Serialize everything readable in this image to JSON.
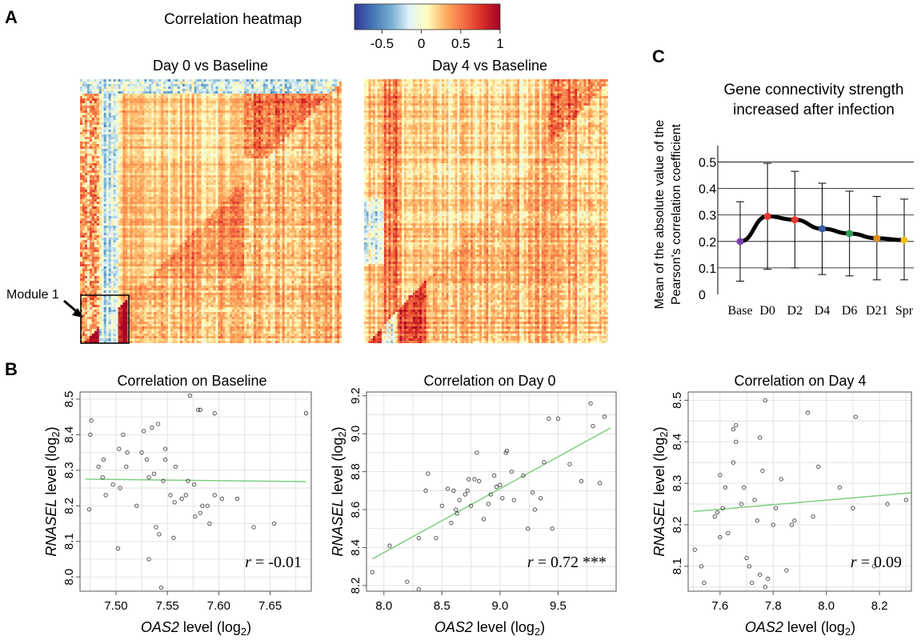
{
  "panel_labels": {
    "a": "A",
    "b": "B",
    "c": "C"
  },
  "colorbar": {
    "title": "Correlation heatmap",
    "ticks": [
      "-0.5",
      "0",
      "0.5",
      "1"
    ],
    "tick_values": [
      -0.5,
      0,
      0.5,
      1
    ],
    "range": [
      -0.85,
      1
    ],
    "colors": [
      "#313695",
      "#4575b4",
      "#74add1",
      "#e0f3f8",
      "#ffffbf",
      "#fdae61",
      "#f46d43",
      "#d73027",
      "#a50026"
    ]
  },
  "chart_data": [
    {
      "type": "heatmap",
      "title": "Day 0 vs Baseline",
      "annotation": "Module 1"
    },
    {
      "type": "heatmap",
      "title": "Day 4 vs Baseline"
    },
    {
      "type": "scatter",
      "title": "Correlation on Baseline",
      "xlabel_italic": "OAS2",
      "xlabel_rest": " level (log",
      "xlabel_sub": "2",
      "xlabel_close": ")",
      "ylabel_italic": "RNASEL",
      "ylabel_rest": " level (log",
      "ylabel_sub": "2",
      "ylabel_close": ")",
      "xlim": [
        7.465,
        7.69
      ],
      "ylim": [
        7.96,
        8.52
      ],
      "xticks": [
        7.5,
        7.55,
        7.6,
        7.65
      ],
      "xtick_labels": [
        "7.50",
        "7.55",
        "7.60",
        "7.65"
      ],
      "yticks": [
        8.0,
        8.1,
        8.2,
        8.3,
        8.4,
        8.5
      ],
      "ytick_labels": [
        "8.0",
        "8.1",
        "8.2",
        "8.3",
        "8.4",
        "8.5"
      ],
      "grid": true,
      "fit": {
        "x": [
          7.47,
          7.685
        ],
        "y": [
          8.275,
          8.268
        ]
      },
      "annotation_r": "r",
      "annotation_rest": " = -0.01",
      "points": [
        [
          7.476,
          8.44
        ],
        [
          7.475,
          8.4
        ],
        [
          7.483,
          8.31
        ],
        [
          7.488,
          8.33
        ],
        [
          7.487,
          8.28
        ],
        [
          7.49,
          8.23
        ],
        [
          7.474,
          8.19
        ],
        [
          7.497,
          8.26
        ],
        [
          7.503,
          8.36
        ],
        [
          7.507,
          8.4
        ],
        [
          7.511,
          8.35
        ],
        [
          7.51,
          8.31
        ],
        [
          7.504,
          8.25
        ],
        [
          7.502,
          8.08
        ],
        [
          7.52,
          8.2
        ],
        [
          7.525,
          8.35
        ],
        [
          7.53,
          8.33
        ],
        [
          7.527,
          8.41
        ],
        [
          7.532,
          8.28
        ],
        [
          7.535,
          8.42
        ],
        [
          7.541,
          8.43
        ],
        [
          7.537,
          8.29
        ],
        [
          7.539,
          8.14
        ],
        [
          7.542,
          8.12
        ],
        [
          7.546,
          8.27
        ],
        [
          7.548,
          8.36
        ],
        [
          7.548,
          8.33
        ],
        [
          7.553,
          8.23
        ],
        [
          7.556,
          8.11
        ],
        [
          7.557,
          8.21
        ],
        [
          7.558,
          8.31
        ],
        [
          7.564,
          8.22
        ],
        [
          7.568,
          8.23
        ],
        [
          7.572,
          8.51
        ],
        [
          7.57,
          8.27
        ],
        [
          7.576,
          8.26
        ],
        [
          7.58,
          8.47
        ],
        [
          7.582,
          8.47
        ],
        [
          7.584,
          8.2
        ],
        [
          7.582,
          8.18
        ],
        [
          7.589,
          8.2
        ],
        [
          7.591,
          8.15
        ],
        [
          7.596,
          8.46
        ],
        [
          7.596,
          8.23
        ],
        [
          7.603,
          8.22
        ],
        [
          7.618,
          8.22
        ],
        [
          7.634,
          8.14
        ],
        [
          7.654,
          8.15
        ],
        [
          7.685,
          8.46
        ],
        [
          7.532,
          8.05
        ],
        [
          7.544,
          7.97
        ],
        [
          7.577,
          8.17
        ]
      ]
    },
    {
      "type": "scatter",
      "title": "Correlation on Day 0",
      "xlabel_italic": "OAS2",
      "xlabel_rest": " level (log",
      "xlabel_sub": "2",
      "xlabel_close": ")",
      "ylabel_italic": "RNASEL",
      "ylabel_rest": " level (log",
      "ylabel_sub": "2",
      "ylabel_close": ")",
      "xlim": [
        7.85,
        10.0
      ],
      "ylim": [
        8.17,
        9.22
      ],
      "xticks": [
        8.0,
        8.5,
        9.0,
        9.5
      ],
      "xtick_labels": [
        "8.0",
        "8.5",
        "9.0",
        "9.5"
      ],
      "yticks": [
        8.2,
        8.4,
        8.6,
        8.8,
        9.0,
        9.2
      ],
      "ytick_labels": [
        "8.2",
        "8.4",
        "8.6",
        "8.8",
        "9.0",
        "9.2"
      ],
      "grid": true,
      "fit": {
        "x": [
          7.9,
          9.95
        ],
        "y": [
          8.34,
          9.03
        ]
      },
      "annotation_r": "r",
      "annotation_rest": " = 0.72 ***",
      "points": [
        [
          7.9,
          8.27
        ],
        [
          8.05,
          8.41
        ],
        [
          8.2,
          8.22
        ],
        [
          8.3,
          8.18
        ],
        [
          8.3,
          8.45
        ],
        [
          8.36,
          8.7
        ],
        [
          8.38,
          8.79
        ],
        [
          8.5,
          8.62
        ],
        [
          8.55,
          8.71
        ],
        [
          8.6,
          8.7
        ],
        [
          8.62,
          8.6
        ],
        [
          8.63,
          8.58
        ],
        [
          8.65,
          8.65
        ],
        [
          8.7,
          8.68
        ],
        [
          8.72,
          8.7
        ],
        [
          8.73,
          8.76
        ],
        [
          8.75,
          8.62
        ],
        [
          8.78,
          8.76
        ],
        [
          8.8,
          8.9
        ],
        [
          8.82,
          8.75
        ],
        [
          8.86,
          8.55
        ],
        [
          8.9,
          8.63
        ],
        [
          8.95,
          8.78
        ],
        [
          8.97,
          8.72
        ],
        [
          9.0,
          8.73
        ],
        [
          9.02,
          8.66
        ],
        [
          9.05,
          8.9
        ],
        [
          9.06,
          8.91
        ],
        [
          9.1,
          8.8
        ],
        [
          9.12,
          8.65
        ],
        [
          9.2,
          8.78
        ],
        [
          9.24,
          8.5
        ],
        [
          9.28,
          8.69
        ],
        [
          9.3,
          8.6
        ],
        [
          9.35,
          8.66
        ],
        [
          9.38,
          8.85
        ],
        [
          9.42,
          9.08
        ],
        [
          9.45,
          8.5
        ],
        [
          9.5,
          9.08
        ],
        [
          9.6,
          8.84
        ],
        [
          9.7,
          8.75
        ],
        [
          9.78,
          9.16
        ],
        [
          9.8,
          9.04
        ],
        [
          9.86,
          8.74
        ],
        [
          9.9,
          9.09
        ],
        [
          8.45,
          8.45
        ],
        [
          8.58,
          8.53
        ],
        [
          8.92,
          8.68
        ]
      ]
    },
    {
      "type": "scatter",
      "title": "Correlation on Day 4",
      "xlabel_italic": "OAS2",
      "xlabel_rest": " level (log",
      "xlabel_sub": "2",
      "xlabel_close": ")",
      "ylabel_italic": "RNASEL",
      "ylabel_rest": " level (log",
      "ylabel_sub": "2",
      "ylabel_close": ")",
      "xlim": [
        7.48,
        8.32
      ],
      "ylim": [
        8.04,
        8.52
      ],
      "xticks": [
        7.6,
        7.8,
        8.0,
        8.2
      ],
      "xtick_labels": [
        "7.6",
        "7.8",
        "8.0",
        "8.2"
      ],
      "yticks": [
        8.1,
        8.2,
        8.3,
        8.4,
        8.5
      ],
      "ytick_labels": [
        "8.1",
        "8.2",
        "8.3",
        "8.4",
        "8.5"
      ],
      "grid": true,
      "fit": {
        "x": [
          7.5,
          8.32
        ],
        "y": [
          8.232,
          8.277
        ]
      },
      "annotation_r": "r",
      "annotation_rest": " = 0.09",
      "points": [
        [
          7.505,
          8.14
        ],
        [
          7.53,
          8.1
        ],
        [
          7.54,
          8.06
        ],
        [
          7.58,
          8.22
        ],
        [
          7.6,
          8.17
        ],
        [
          7.6,
          8.32
        ],
        [
          7.61,
          8.24
        ],
        [
          7.62,
          8.29
        ],
        [
          7.63,
          8.18
        ],
        [
          7.65,
          8.35
        ],
        [
          7.65,
          8.43
        ],
        [
          7.66,
          8.4
        ],
        [
          7.66,
          8.44
        ],
        [
          7.68,
          8.25
        ],
        [
          7.7,
          8.12
        ],
        [
          7.71,
          8.1
        ],
        [
          7.72,
          8.06
        ],
        [
          7.73,
          8.26
        ],
        [
          7.74,
          8.21
        ],
        [
          7.75,
          8.41
        ],
        [
          7.76,
          8.33
        ],
        [
          7.77,
          8.05
        ],
        [
          7.77,
          8.5
        ],
        [
          7.78,
          8.07
        ],
        [
          7.8,
          8.2
        ],
        [
          7.81,
          8.24
        ],
        [
          7.83,
          8.31
        ],
        [
          7.85,
          8.09
        ],
        [
          7.87,
          8.2
        ],
        [
          7.88,
          8.21
        ],
        [
          7.93,
          8.47
        ],
        [
          7.95,
          8.22
        ],
        [
          7.97,
          8.34
        ],
        [
          8.05,
          8.29
        ],
        [
          8.1,
          8.24
        ],
        [
          8.11,
          8.46
        ],
        [
          8.18,
          8.1
        ],
        [
          8.23,
          8.25
        ],
        [
          8.3,
          8.26
        ],
        [
          7.59,
          8.23
        ],
        [
          7.75,
          8.08
        ],
        [
          7.69,
          8.29
        ]
      ]
    },
    {
      "type": "line",
      "title_lines": [
        "Gene connectivity strength",
        "increased after infection"
      ],
      "ylabel_lines": [
        "Mean of the absolute value of the",
        "Pearson's correlation coefficient"
      ],
      "categories": [
        "Base",
        "D0",
        "D2",
        "D4",
        "D6",
        "D21",
        "Spr"
      ],
      "values": [
        0.2,
        0.295,
        0.282,
        0.248,
        0.23,
        0.212,
        0.205
      ],
      "error_low": [
        0.05,
        0.095,
        0.1,
        0.075,
        0.07,
        0.055,
        0.055
      ],
      "error_high": [
        0.35,
        0.495,
        0.465,
        0.42,
        0.39,
        0.37,
        0.36
      ],
      "point_colors": [
        "#7b3fb0",
        "#e53935",
        "#e53935",
        "#3b5fa8",
        "#2e9e5b",
        "#e08e1e",
        "#f2c21a"
      ],
      "ylim": [
        0,
        0.55
      ],
      "yticks": [
        0,
        0.1,
        0.2,
        0.3,
        0.4,
        0.5
      ],
      "ytick_labels": [
        "0",
        "0.1",
        "0.2",
        "0.3",
        "0.4",
        "0.5"
      ],
      "grid": "horizontal"
    }
  ]
}
